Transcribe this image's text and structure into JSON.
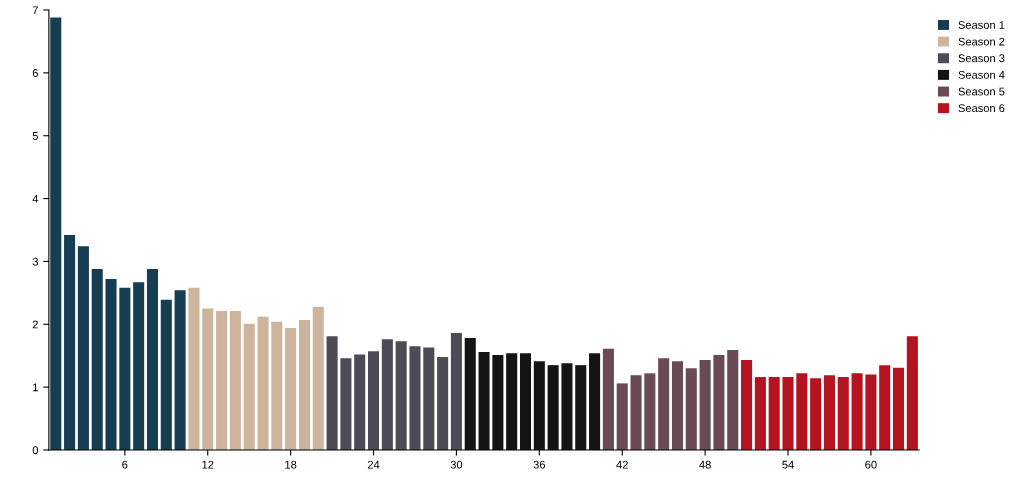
{
  "chart_data": {
    "type": "bar",
    "xlim": [
      0.5,
      63.5
    ],
    "xticks": [
      6,
      12,
      18,
      24,
      30,
      36,
      42,
      48,
      54,
      60
    ],
    "ylim": [
      0,
      7
    ],
    "yticks": [
      0,
      1,
      2,
      3,
      4,
      5,
      6,
      7
    ],
    "grid": false,
    "legend": "top right",
    "series": [
      {
        "name": "Season 1",
        "color": "#173d52",
        "x": [
          1,
          2,
          3,
          4,
          5,
          6,
          7,
          8,
          9,
          10
        ],
        "values": [
          6.88,
          3.42,
          3.24,
          2.88,
          2.72,
          2.58,
          2.67,
          2.88,
          2.39,
          2.54
        ]
      },
      {
        "name": "Season 2",
        "color": "#cdb49c",
        "x": [
          11,
          12,
          13,
          14,
          15,
          16,
          17,
          18,
          19,
          20
        ],
        "values": [
          2.58,
          2.25,
          2.21,
          2.21,
          2.01,
          2.12,
          2.04,
          1.94,
          2.07,
          2.28
        ]
      },
      {
        "name": "Season 3",
        "color": "#4d4b56",
        "x": [
          21,
          22,
          23,
          24,
          25,
          26,
          27,
          28,
          29,
          30
        ],
        "values": [
          1.81,
          1.46,
          1.52,
          1.57,
          1.76,
          1.73,
          1.65,
          1.63,
          1.48,
          1.86
        ]
      },
      {
        "name": "Season 4",
        "color": "#141414",
        "x": [
          31,
          32,
          33,
          34,
          35,
          36,
          37,
          38,
          39,
          40
        ],
        "values": [
          1.78,
          1.56,
          1.51,
          1.54,
          1.54,
          1.41,
          1.35,
          1.38,
          1.35,
          1.54
        ]
      },
      {
        "name": "Season 5",
        "color": "#6a4a55",
        "x": [
          41,
          42,
          43,
          44,
          45,
          46,
          47,
          48,
          49,
          50
        ],
        "values": [
          1.61,
          1.06,
          1.19,
          1.22,
          1.46,
          1.41,
          1.3,
          1.43,
          1.51,
          1.59
        ]
      },
      {
        "name": "Season 6",
        "color": "#b3141f",
        "x": [
          51,
          52,
          53,
          54,
          55,
          56,
          57,
          58,
          59,
          60,
          61,
          62,
          63
        ],
        "values": [
          1.43,
          1.16,
          1.16,
          1.16,
          1.22,
          1.14,
          1.19,
          1.16,
          1.22,
          1.2,
          1.35,
          1.31,
          1.81
        ]
      }
    ]
  }
}
